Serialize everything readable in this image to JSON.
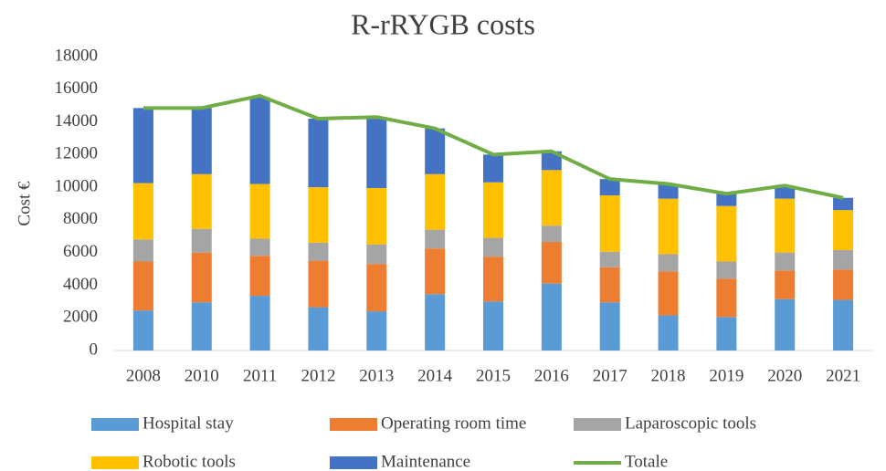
{
  "chart_data": {
    "type": "bar",
    "title": "R-rRYGB costs",
    "y_label": "Cost €",
    "categories": [
      "2008",
      "2010",
      "2011",
      "2012",
      "2013",
      "2014",
      "2015",
      "2016",
      "2017",
      "2018",
      "2019",
      "2020",
      "2021"
    ],
    "series": [
      {
        "name": "Hospital stay",
        "type": "bar",
        "color": "#5b9bd5",
        "values": [
          2450,
          2950,
          3350,
          2650,
          2400,
          3450,
          3000,
          4100,
          2950,
          2150,
          2050,
          3150,
          3100
        ]
      },
      {
        "name": "Operating room time",
        "type": "bar",
        "color": "#ed7d31",
        "values": [
          3000,
          3050,
          2450,
          2850,
          2900,
          2800,
          2750,
          2550,
          2150,
          2700,
          2350,
          1750,
          1850
        ]
      },
      {
        "name": "Laparoscopic tools",
        "type": "bar",
        "color": "#a5a5a5",
        "values": [
          1350,
          1450,
          1050,
          1100,
          1200,
          1150,
          1150,
          1000,
          950,
          1050,
          1050,
          1100,
          1200
        ]
      },
      {
        "name": "Robotic tools",
        "type": "bar",
        "color": "#ffc000",
        "values": [
          3450,
          3350,
          3350,
          3400,
          3450,
          3400,
          3400,
          3400,
          3450,
          3400,
          3400,
          3300,
          2450
        ]
      },
      {
        "name": "Maintenance",
        "type": "bar",
        "color": "#4472c4",
        "values": [
          4600,
          4050,
          5300,
          4200,
          4350,
          2800,
          1700,
          1150,
          1000,
          900,
          750,
          800,
          750
        ]
      },
      {
        "name": "Totale",
        "type": "line",
        "color": "#70ad47",
        "values": [
          14850,
          14850,
          15600,
          14200,
          14300,
          13600,
          12000,
          12200,
          10500,
          10200,
          9600,
          10100,
          9350
        ]
      }
    ],
    "ylim": [
      0,
      18000
    ],
    "yticks": [
      0,
      2000,
      4000,
      6000,
      8000,
      10000,
      12000,
      14000,
      16000,
      18000
    ],
    "grid": false,
    "legend": "bottom"
  }
}
